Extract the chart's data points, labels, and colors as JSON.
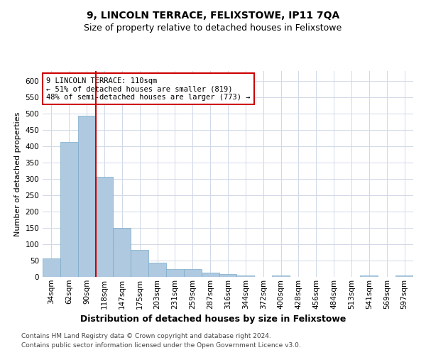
{
  "title": "9, LINCOLN TERRACE, FELIXSTOWE, IP11 7QA",
  "subtitle": "Size of property relative to detached houses in Felixstowe",
  "xlabel": "Distribution of detached houses by size in Felixstowe",
  "ylabel": "Number of detached properties",
  "footnote1": "Contains HM Land Registry data © Crown copyright and database right 2024.",
  "footnote2": "Contains public sector information licensed under the Open Government Licence v3.0.",
  "bar_labels": [
    "34sqm",
    "62sqm",
    "90sqm",
    "118sqm",
    "147sqm",
    "175sqm",
    "203sqm",
    "231sqm",
    "259sqm",
    "287sqm",
    "316sqm",
    "344sqm",
    "372sqm",
    "400sqm",
    "428sqm",
    "456sqm",
    "484sqm",
    "513sqm",
    "541sqm",
    "569sqm",
    "597sqm"
  ],
  "bar_values": [
    57,
    413,
    494,
    307,
    149,
    82,
    44,
    24,
    24,
    12,
    8,
    5,
    0,
    5,
    0,
    0,
    0,
    0,
    5,
    0,
    5
  ],
  "bar_color": "#aec9e0",
  "bar_edgecolor": "#7aaac8",
  "vline_x": 2.5,
  "vline_color": "#cc0000",
  "annotation_text": "9 LINCOLN TERRACE: 110sqm\n← 51% of detached houses are smaller (819)\n48% of semi-detached houses are larger (773) →",
  "annotation_box_color": "#cc0000",
  "ylim": [
    0,
    630
  ],
  "yticks": [
    0,
    50,
    100,
    150,
    200,
    250,
    300,
    350,
    400,
    450,
    500,
    550,
    600
  ],
  "title_fontsize": 10,
  "subtitle_fontsize": 9,
  "xlabel_fontsize": 9,
  "ylabel_fontsize": 8,
  "tick_fontsize": 7.5,
  "annotation_fontsize": 7.5,
  "footnote_fontsize": 6.5,
  "background_color": "#ffffff",
  "grid_color": "#d0d8e8"
}
